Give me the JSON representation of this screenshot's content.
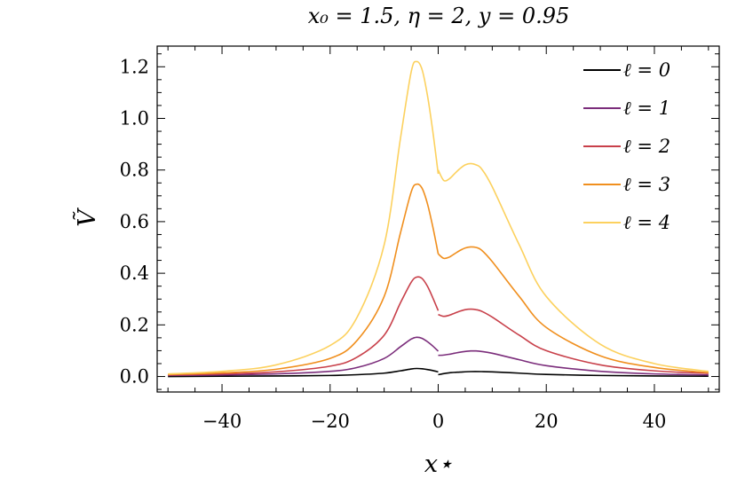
{
  "chart_data": {
    "type": "line",
    "title": "x₀ = 1.5, η = 2, y = 0.95",
    "xlabel": "x⋆",
    "ylabel": "Ṽ",
    "xlim": [
      -52,
      52
    ],
    "ylim": [
      -0.06,
      1.28
    ],
    "x_ticks": [
      -40,
      -20,
      0,
      20,
      40
    ],
    "x_tick_labels": [
      "−40",
      "−20",
      "0",
      "20",
      "40"
    ],
    "y_ticks": [
      0.0,
      0.2,
      0.4,
      0.6,
      0.8,
      1.0,
      1.2
    ],
    "y_tick_labels": [
      "0.0",
      "0.2",
      "0.4",
      "0.6",
      "0.8",
      "1.0",
      "1.2"
    ],
    "grid": false,
    "legend_position": "top-right",
    "series": [
      {
        "name": "ℓ = 0",
        "color": "#000000",
        "left": {
          "x": [
            -50,
            -40,
            -30,
            -20,
            -15,
            -10,
            -7,
            -5,
            -4,
            -3,
            -2,
            -1,
            0
          ],
          "y": [
            0.0,
            0.001,
            0.002,
            0.004,
            0.007,
            0.013,
            0.022,
            0.029,
            0.031,
            0.03,
            0.027,
            0.023,
            0.018
          ]
        },
        "right": {
          "x": [
            0,
            1,
            2,
            3,
            4,
            6,
            8,
            10,
            15,
            20,
            30,
            40,
            50
          ],
          "y": [
            0.007,
            0.011,
            0.014,
            0.016,
            0.017,
            0.019,
            0.019,
            0.018,
            0.013,
            0.008,
            0.004,
            0.002,
            0.001
          ]
        }
      },
      {
        "name": "ℓ = 1",
        "color": "#7b2d7b",
        "left": {
          "x": [
            -50,
            -40,
            -30,
            -20,
            -15,
            -10,
            -7,
            -5,
            -4,
            -3,
            -2,
            -1,
            0
          ],
          "y": [
            0.004,
            0.006,
            0.01,
            0.02,
            0.035,
            0.07,
            0.115,
            0.145,
            0.152,
            0.148,
            0.135,
            0.118,
            0.098
          ]
        },
        "right": {
          "x": [
            0,
            1,
            2,
            3,
            4,
            5,
            6,
            7,
            8,
            10,
            15,
            20,
            30,
            40,
            50
          ],
          "y": [
            0.082,
            0.083,
            0.086,
            0.09,
            0.094,
            0.097,
            0.099,
            0.099,
            0.097,
            0.09,
            0.065,
            0.042,
            0.02,
            0.01,
            0.006
          ]
        }
      },
      {
        "name": "ℓ = 2",
        "color": "#c8404a",
        "left": {
          "x": [
            -50,
            -40,
            -30,
            -20,
            -15,
            -10,
            -7,
            -5,
            -4,
            -3,
            -2,
            -1,
            0
          ],
          "y": [
            0.006,
            0.01,
            0.018,
            0.04,
            0.075,
            0.16,
            0.285,
            0.365,
            0.385,
            0.38,
            0.35,
            0.305,
            0.255
          ]
        },
        "right": {
          "x": [
            0,
            1,
            2,
            3,
            4,
            5,
            6,
            7,
            8,
            10,
            15,
            20,
            30,
            40,
            50
          ],
          "y": [
            0.24,
            0.233,
            0.237,
            0.245,
            0.253,
            0.259,
            0.261,
            0.259,
            0.253,
            0.23,
            0.16,
            0.1,
            0.045,
            0.022,
            0.012
          ]
        }
      },
      {
        "name": "ℓ = 3",
        "color": "#f08f1e",
        "left": {
          "x": [
            -50,
            -40,
            -30,
            -20,
            -15,
            -10,
            -7,
            -5,
            -4,
            -3,
            -2,
            -1,
            0
          ],
          "y": [
            0.008,
            0.014,
            0.028,
            0.07,
            0.14,
            0.31,
            0.555,
            0.715,
            0.745,
            0.73,
            0.67,
            0.58,
            0.475
          ]
        },
        "right": {
          "x": [
            0,
            1,
            2,
            3,
            4,
            5,
            6,
            7,
            8,
            10,
            15,
            20,
            30,
            40,
            50
          ],
          "y": [
            0.475,
            0.458,
            0.462,
            0.475,
            0.488,
            0.498,
            0.502,
            0.5,
            0.49,
            0.445,
            0.31,
            0.19,
            0.08,
            0.035,
            0.015
          ]
        }
      },
      {
        "name": "ℓ = 4",
        "color": "#fcd15e",
        "left": {
          "x": [
            -50,
            -40,
            -30,
            -20,
            -15,
            -10,
            -7,
            -5,
            -4,
            -3,
            -2,
            -1,
            0
          ],
          "y": [
            0.01,
            0.02,
            0.045,
            0.12,
            0.23,
            0.51,
            0.92,
            1.18,
            1.22,
            1.19,
            1.09,
            0.95,
            0.785
          ]
        },
        "right": {
          "x": [
            0,
            1,
            2,
            3,
            4,
            5,
            6,
            7,
            8,
            10,
            15,
            20,
            30,
            40,
            50
          ],
          "y": [
            0.8,
            0.76,
            0.765,
            0.785,
            0.805,
            0.82,
            0.825,
            0.82,
            0.805,
            0.735,
            0.51,
            0.31,
            0.125,
            0.05,
            0.02
          ]
        }
      }
    ]
  }
}
